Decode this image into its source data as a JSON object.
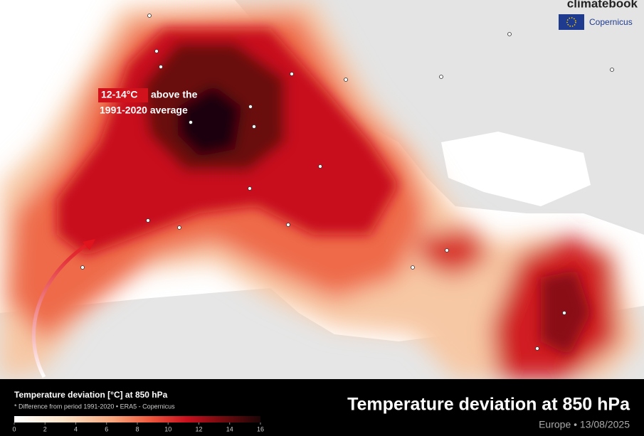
{
  "brand": {
    "name": "climatebook",
    "partner": "Copernicus"
  },
  "annotation": {
    "highlight": "12-14°C",
    "line1": "above the",
    "line2": "1991-2020 average"
  },
  "legend": {
    "title": "Temperature deviation [°C] at 850 hPa",
    "note": "* Difference from period 1991-2020 • ERA5 - Copernicus",
    "ticks": [
      0,
      2,
      4,
      6,
      8,
      10,
      12,
      14,
      16
    ]
  },
  "footer": {
    "title": "Temperature deviation at 850 hPa",
    "subtitle": "Europe • 13/08/2025"
  }
}
